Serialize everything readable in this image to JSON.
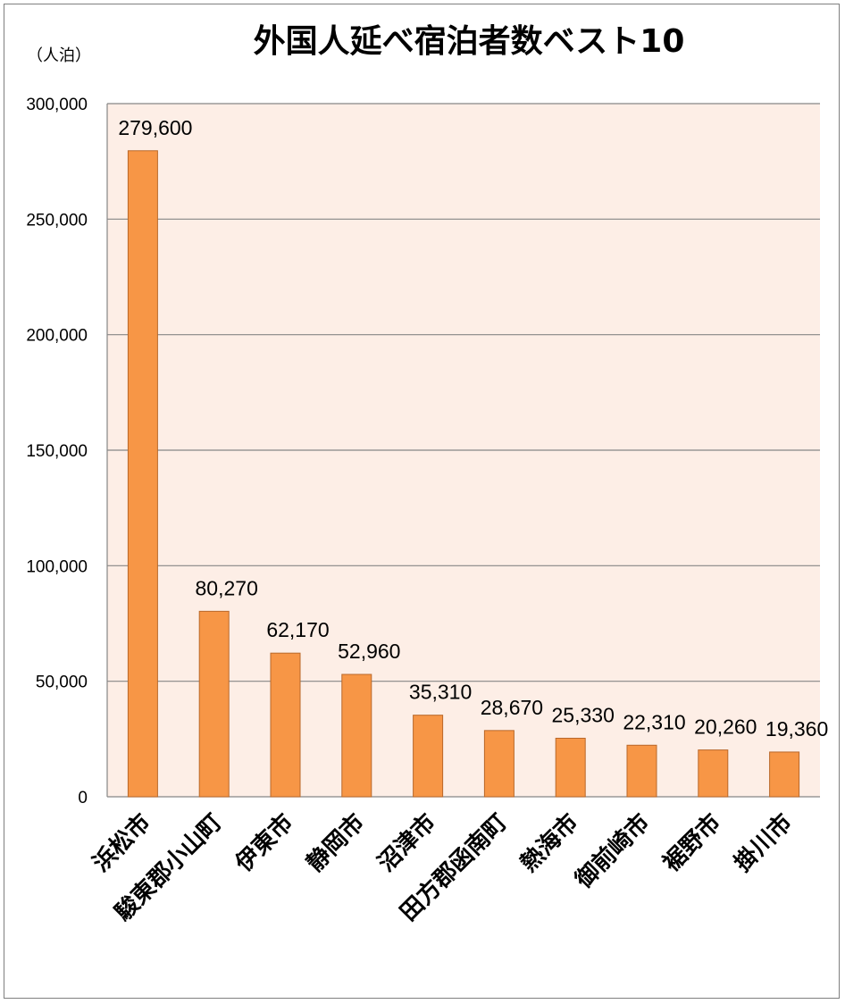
{
  "chart_data": {
    "type": "bar",
    "title": "外国人延べ宿泊者数ベスト10",
    "unit_label": "（人泊）",
    "categories": [
      "浜松市",
      "駿東郡小山町",
      "伊東市",
      "静岡市",
      "沼津市",
      "田方郡函南町",
      "熱海市",
      "御前崎市",
      "裾野市",
      "掛川市"
    ],
    "values": [
      279600,
      80270,
      62170,
      52960,
      35310,
      28670,
      25330,
      22310,
      20260,
      19360
    ],
    "data_labels": [
      "279,600",
      "80,270",
      "62,170",
      "52,960",
      "35,310",
      "28,670",
      "25,330",
      "22,310",
      "20,260",
      "19,360"
    ],
    "ylim": [
      0,
      300000
    ],
    "yticks": [
      0,
      50000,
      100000,
      150000,
      200000,
      250000,
      300000
    ],
    "ytick_labels": [
      "0",
      "50,000",
      "100,000",
      "150,000",
      "200,000",
      "250,000",
      "300,000"
    ],
    "grid": true,
    "legend": "none",
    "colors": {
      "bar": "#f79646",
      "bar_edge": "#b9682a",
      "plot_bg": "#fdeee6",
      "grid": "#868686"
    }
  }
}
